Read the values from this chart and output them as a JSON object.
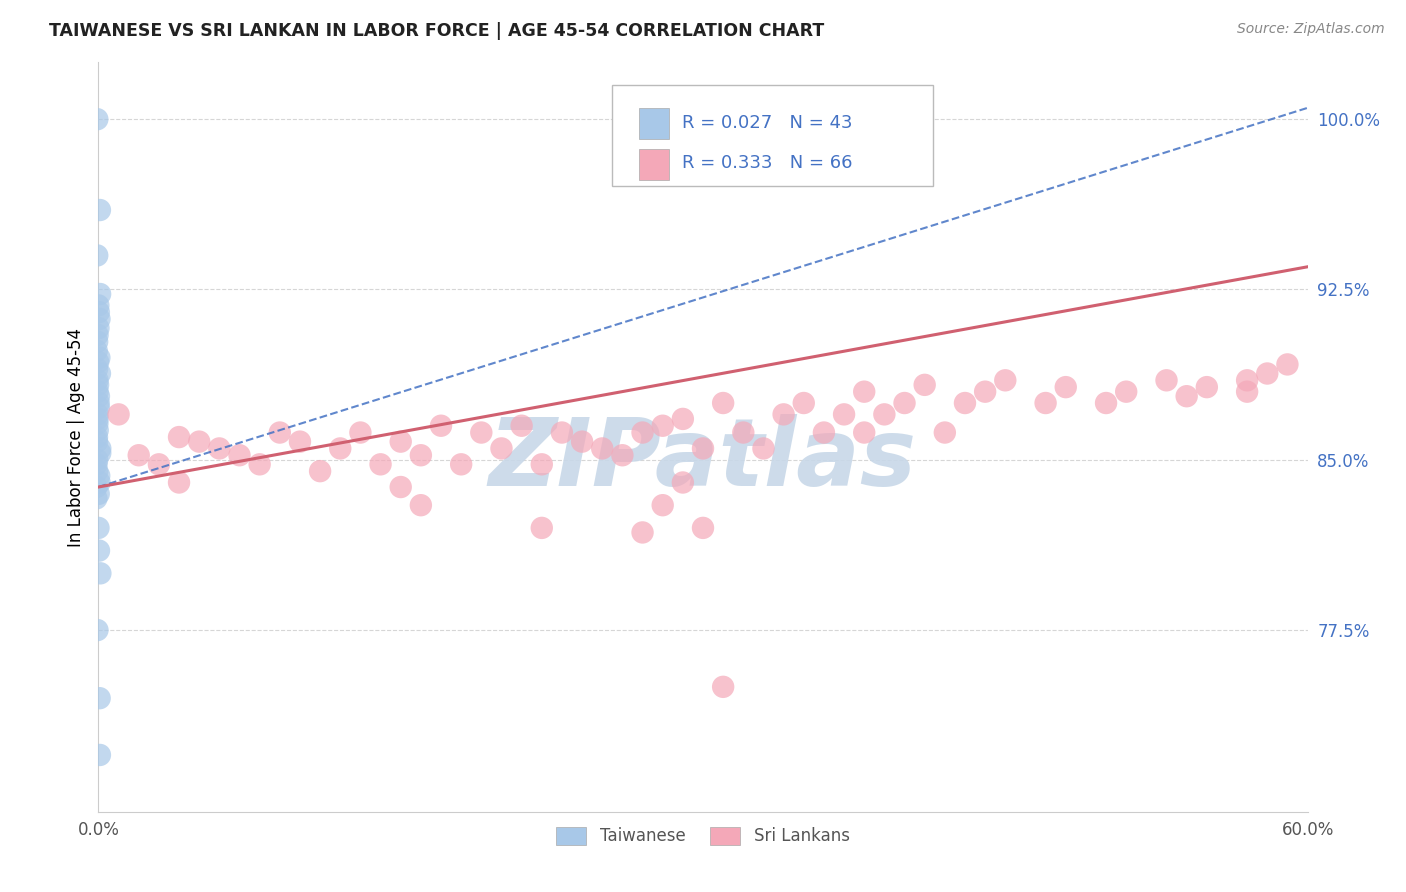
{
  "title": "TAIWANESE VS SRI LANKAN IN LABOR FORCE | AGE 45-54 CORRELATION CHART",
  "source": "Source: ZipAtlas.com",
  "ylabel": "In Labor Force | Age 45-54",
  "xlim": [
    0.0,
    0.6
  ],
  "ylim": [
    0.695,
    1.025
  ],
  "ytick_labels": [
    "77.5%",
    "85.0%",
    "92.5%",
    "100.0%"
  ],
  "ytick_values": [
    0.775,
    0.85,
    0.925,
    1.0
  ],
  "xtick_labels": [
    "0.0%",
    "60.0%"
  ],
  "xtick_values": [
    0.0,
    0.6
  ],
  "taiwanese_R": 0.027,
  "taiwanese_N": 43,
  "srilankan_R": 0.333,
  "srilankan_N": 66,
  "taiwanese_color": "#a8c8e8",
  "srilankan_color": "#f4a8b8",
  "taiwanese_line_color": "#4472c4",
  "srilankan_line_color": "#d06070",
  "watermark_text": "ZIPatlas",
  "watermark_color": "#c8d8e8",
  "background_color": "#ffffff",
  "tw_line_x": [
    0.0,
    0.6
  ],
  "tw_line_y": [
    0.838,
    1.005
  ],
  "sl_line_x": [
    0.0,
    0.6
  ],
  "sl_line_y": [
    0.838,
    0.935
  ],
  "legend_R1": "R = 0.027",
  "legend_N1": "N = 43",
  "legend_R2": "R = 0.333",
  "legend_N2": "N = 66",
  "tw_scatter_x": [
    0.0,
    0.0,
    0.0,
    0.0,
    0.0,
    0.0,
    0.0,
    0.0,
    0.0,
    0.0,
    0.0,
    0.0,
    0.0,
    0.0,
    0.0,
    0.0,
    0.0,
    0.0,
    0.0,
    0.0,
    0.0,
    0.0,
    0.0,
    0.0,
    0.0,
    0.0,
    0.0,
    0.0,
    0.0,
    0.0,
    0.0,
    0.0,
    0.0,
    0.0,
    0.0,
    0.0,
    0.0,
    0.0,
    0.0,
    0.0,
    0.0,
    0.0,
    0.0
  ],
  "tw_scatter_y": [
    1.0,
    0.96,
    0.94,
    0.923,
    0.918,
    0.915,
    0.912,
    0.908,
    0.905,
    0.902,
    0.898,
    0.895,
    0.893,
    0.89,
    0.888,
    0.885,
    0.883,
    0.88,
    0.878,
    0.875,
    0.873,
    0.87,
    0.868,
    0.866,
    0.863,
    0.86,
    0.858,
    0.855,
    0.853,
    0.85,
    0.848,
    0.845,
    0.843,
    0.84,
    0.838,
    0.835,
    0.833,
    0.82,
    0.81,
    0.8,
    0.775,
    0.745,
    0.72
  ],
  "sl_scatter_x": [
    0.01,
    0.02,
    0.03,
    0.04,
    0.04,
    0.05,
    0.06,
    0.07,
    0.08,
    0.09,
    0.1,
    0.11,
    0.12,
    0.13,
    0.14,
    0.15,
    0.15,
    0.16,
    0.17,
    0.18,
    0.19,
    0.2,
    0.21,
    0.22,
    0.23,
    0.24,
    0.25,
    0.26,
    0.27,
    0.28,
    0.29,
    0.3,
    0.31,
    0.32,
    0.33,
    0.34,
    0.35,
    0.36,
    0.37,
    0.38,
    0.38,
    0.39,
    0.4,
    0.41,
    0.42,
    0.43,
    0.44,
    0.45,
    0.47,
    0.48,
    0.5,
    0.51,
    0.53,
    0.54,
    0.55,
    0.57,
    0.57,
    0.58,
    0.59,
    0.22,
    0.16,
    0.27,
    0.28,
    0.29,
    0.3,
    0.31
  ],
  "sl_scatter_y": [
    0.87,
    0.852,
    0.848,
    0.86,
    0.84,
    0.858,
    0.855,
    0.852,
    0.848,
    0.862,
    0.858,
    0.845,
    0.855,
    0.862,
    0.848,
    0.858,
    0.838,
    0.852,
    0.865,
    0.848,
    0.862,
    0.855,
    0.865,
    0.848,
    0.862,
    0.858,
    0.855,
    0.852,
    0.862,
    0.865,
    0.868,
    0.855,
    0.875,
    0.862,
    0.855,
    0.87,
    0.875,
    0.862,
    0.87,
    0.862,
    0.88,
    0.87,
    0.875,
    0.883,
    0.862,
    0.875,
    0.88,
    0.885,
    0.875,
    0.882,
    0.875,
    0.88,
    0.885,
    0.878,
    0.882,
    0.885,
    0.88,
    0.888,
    0.892,
    0.82,
    0.83,
    0.818,
    0.83,
    0.84,
    0.82,
    0.75
  ]
}
